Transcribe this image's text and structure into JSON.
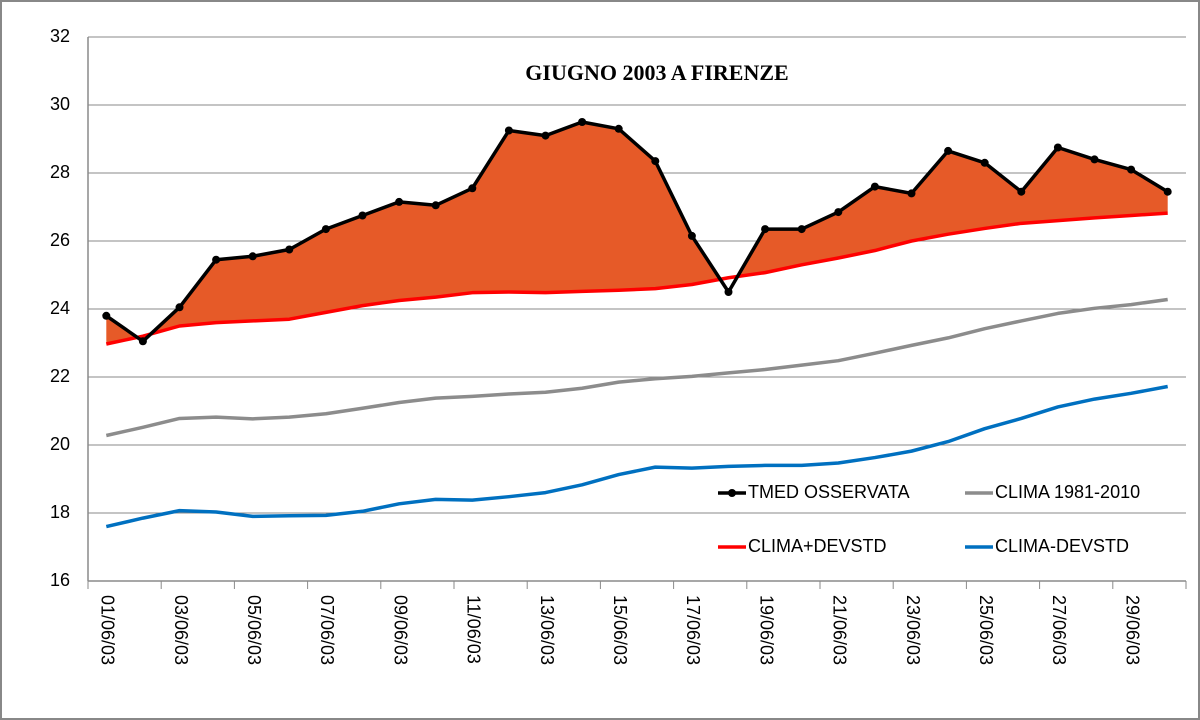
{
  "chart_data": {
    "type": "line",
    "title": "GIUGNO 2003 A FIRENZE",
    "categories": [
      "01/06/03",
      null,
      "03/06/03",
      null,
      "05/06/03",
      null,
      "07/06/03",
      null,
      "09/06/03",
      null,
      "11/06/03",
      null,
      "13/06/03",
      null,
      "15/06/03",
      null,
      "17/06/03",
      null,
      "19/06/03",
      null,
      "21/06/03",
      null,
      "23/06/03",
      null,
      "25/06/03",
      null,
      "27/06/03",
      null,
      "29/06/03",
      null
    ],
    "series": [
      {
        "name": "TMED OSSERVATA",
        "color": "#000000",
        "markers": true,
        "values": [
          23.8,
          23.05,
          24.05,
          25.45,
          25.55,
          25.75,
          26.35,
          26.75,
          27.15,
          27.05,
          27.55,
          29.25,
          29.1,
          29.5,
          29.3,
          28.35,
          26.15,
          24.5,
          26.35,
          26.35,
          26.85,
          27.6,
          27.4,
          28.65,
          28.3,
          27.45,
          28.75,
          28.4,
          28.1,
          27.45
        ]
      },
      {
        "name": "CLIMA 1981-2010",
        "color": "#8c8c8c",
        "values": [
          20.28,
          20.52,
          20.78,
          20.82,
          20.77,
          20.82,
          20.92,
          21.08,
          21.25,
          21.38,
          21.43,
          21.5,
          21.55,
          21.67,
          21.85,
          21.95,
          22.02,
          22.12,
          22.22,
          22.35,
          22.48,
          22.7,
          22.93,
          23.15,
          23.42,
          23.65,
          23.87,
          24.02,
          24.13,
          24.28
        ]
      },
      {
        "name": "CLIMA+DEVSTD",
        "color": "#ff0000",
        "values": [
          22.97,
          23.2,
          23.5,
          23.6,
          23.65,
          23.7,
          23.9,
          24.1,
          24.25,
          24.35,
          24.48,
          24.5,
          24.48,
          24.52,
          24.55,
          24.6,
          24.72,
          24.92,
          25.07,
          25.3,
          25.5,
          25.72,
          26.0,
          26.2,
          26.37,
          26.52,
          26.6,
          26.68,
          26.75,
          26.82
        ]
      },
      {
        "name": "CLIMA-DEVSTD",
        "color": "#0070c0",
        "values": [
          17.6,
          17.85,
          18.07,
          18.03,
          17.9,
          17.92,
          17.93,
          18.05,
          18.27,
          18.4,
          18.38,
          18.48,
          18.6,
          18.83,
          19.13,
          19.35,
          19.32,
          19.37,
          19.4,
          19.4,
          19.47,
          19.63,
          19.82,
          20.1,
          20.48,
          20.78,
          21.12,
          21.35,
          21.52,
          21.72
        ]
      }
    ],
    "fill_color": "#e65a28",
    "ylim": [
      16,
      32
    ],
    "yticks": [
      16,
      18,
      20,
      22,
      24,
      26,
      28,
      30,
      32
    ],
    "grid": true,
    "legend": "lower right"
  }
}
